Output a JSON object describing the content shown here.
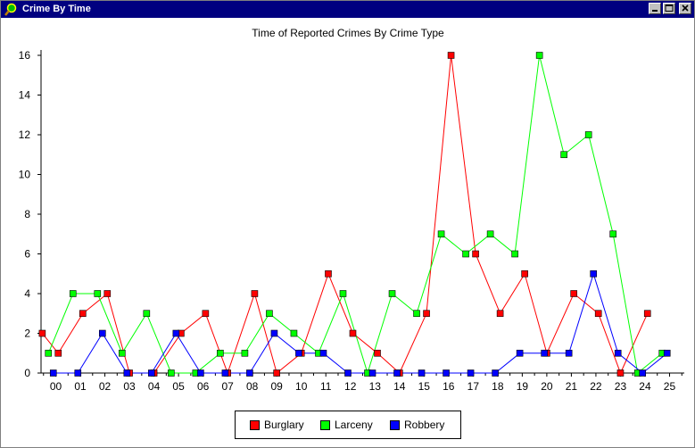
{
  "window": {
    "title": "Crime By Time"
  },
  "chart_data": {
    "type": "line",
    "title": "Time of Reported Crimes By Crime Type",
    "xlabel": "",
    "ylabel": "",
    "categories": [
      "00",
      "01",
      "02",
      "03",
      "04",
      "05",
      "06",
      "07",
      "08",
      "09",
      "10",
      "11",
      "12",
      "13",
      "14",
      "15",
      "16",
      "17",
      "18",
      "19",
      "20",
      "21",
      "22",
      "23",
      "24",
      "25"
    ],
    "ylim": [
      0,
      16
    ],
    "yticks": [
      0,
      2,
      4,
      6,
      8,
      10,
      12,
      14,
      16
    ],
    "x_range": [
      -0.1,
      26.1
    ],
    "legend_position": "bottom",
    "grid": false,
    "series": [
      {
        "name": "Burglary",
        "color": "#ff0000",
        "points": [
          [
            -0.05,
            2
          ],
          [
            0.6,
            1
          ],
          [
            1.6,
            3
          ],
          [
            2.6,
            4
          ],
          [
            3.5,
            0
          ],
          [
            4.5,
            0
          ],
          [
            5.6,
            2
          ],
          [
            6.6,
            3
          ],
          [
            7.5,
            0
          ],
          [
            8.6,
            4
          ],
          [
            9.5,
            0
          ],
          [
            10.5,
            1
          ],
          [
            11.6,
            5
          ],
          [
            12.6,
            2
          ],
          [
            13.6,
            1
          ],
          [
            14.5,
            0
          ],
          [
            15.6,
            3
          ],
          [
            16.6,
            16
          ],
          [
            17.6,
            6
          ],
          [
            18.6,
            3
          ],
          [
            19.6,
            5
          ],
          [
            20.5,
            1
          ],
          [
            21.6,
            4
          ],
          [
            22.6,
            3
          ],
          [
            23.5,
            0
          ],
          [
            24.6,
            3
          ]
        ]
      },
      {
        "name": "Larceny",
        "color": "#00ff00",
        "points": [
          [
            0.2,
            1
          ],
          [
            1.2,
            4
          ],
          [
            2.2,
            4
          ],
          [
            3.2,
            1
          ],
          [
            4.2,
            3
          ],
          [
            5.2,
            0
          ],
          [
            6.2,
            0
          ],
          [
            7.2,
            1
          ],
          [
            8.2,
            1
          ],
          [
            9.2,
            3
          ],
          [
            10.2,
            2
          ],
          [
            11.2,
            1
          ],
          [
            12.2,
            4
          ],
          [
            13.2,
            0
          ],
          [
            14.2,
            4
          ],
          [
            15.2,
            3
          ],
          [
            16.2,
            7
          ],
          [
            17.2,
            6
          ],
          [
            18.2,
            7
          ],
          [
            19.2,
            6
          ],
          [
            20.2,
            16
          ],
          [
            21.2,
            11
          ],
          [
            22.2,
            12
          ],
          [
            23.2,
            7
          ],
          [
            24.2,
            0
          ],
          [
            25.2,
            1
          ]
        ]
      },
      {
        "name": "Robbery",
        "color": "#0000ff",
        "points": [
          [
            0.4,
            0
          ],
          [
            1.4,
            0
          ],
          [
            2.4,
            2
          ],
          [
            3.4,
            0
          ],
          [
            4.4,
            0
          ],
          [
            5.4,
            2
          ],
          [
            6.4,
            0
          ],
          [
            7.4,
            0
          ],
          [
            8.4,
            0
          ],
          [
            9.4,
            2
          ],
          [
            10.4,
            1
          ],
          [
            11.4,
            1
          ],
          [
            12.4,
            0
          ],
          [
            13.4,
            0
          ],
          [
            14.4,
            0
          ],
          [
            15.4,
            0
          ],
          [
            16.4,
            0
          ],
          [
            17.4,
            0
          ],
          [
            18.4,
            0
          ],
          [
            19.4,
            1
          ],
          [
            20.4,
            1
          ],
          [
            21.4,
            1
          ],
          [
            22.4,
            5
          ],
          [
            23.4,
            1
          ],
          [
            24.4,
            0
          ],
          [
            25.4,
            1
          ]
        ]
      }
    ]
  }
}
